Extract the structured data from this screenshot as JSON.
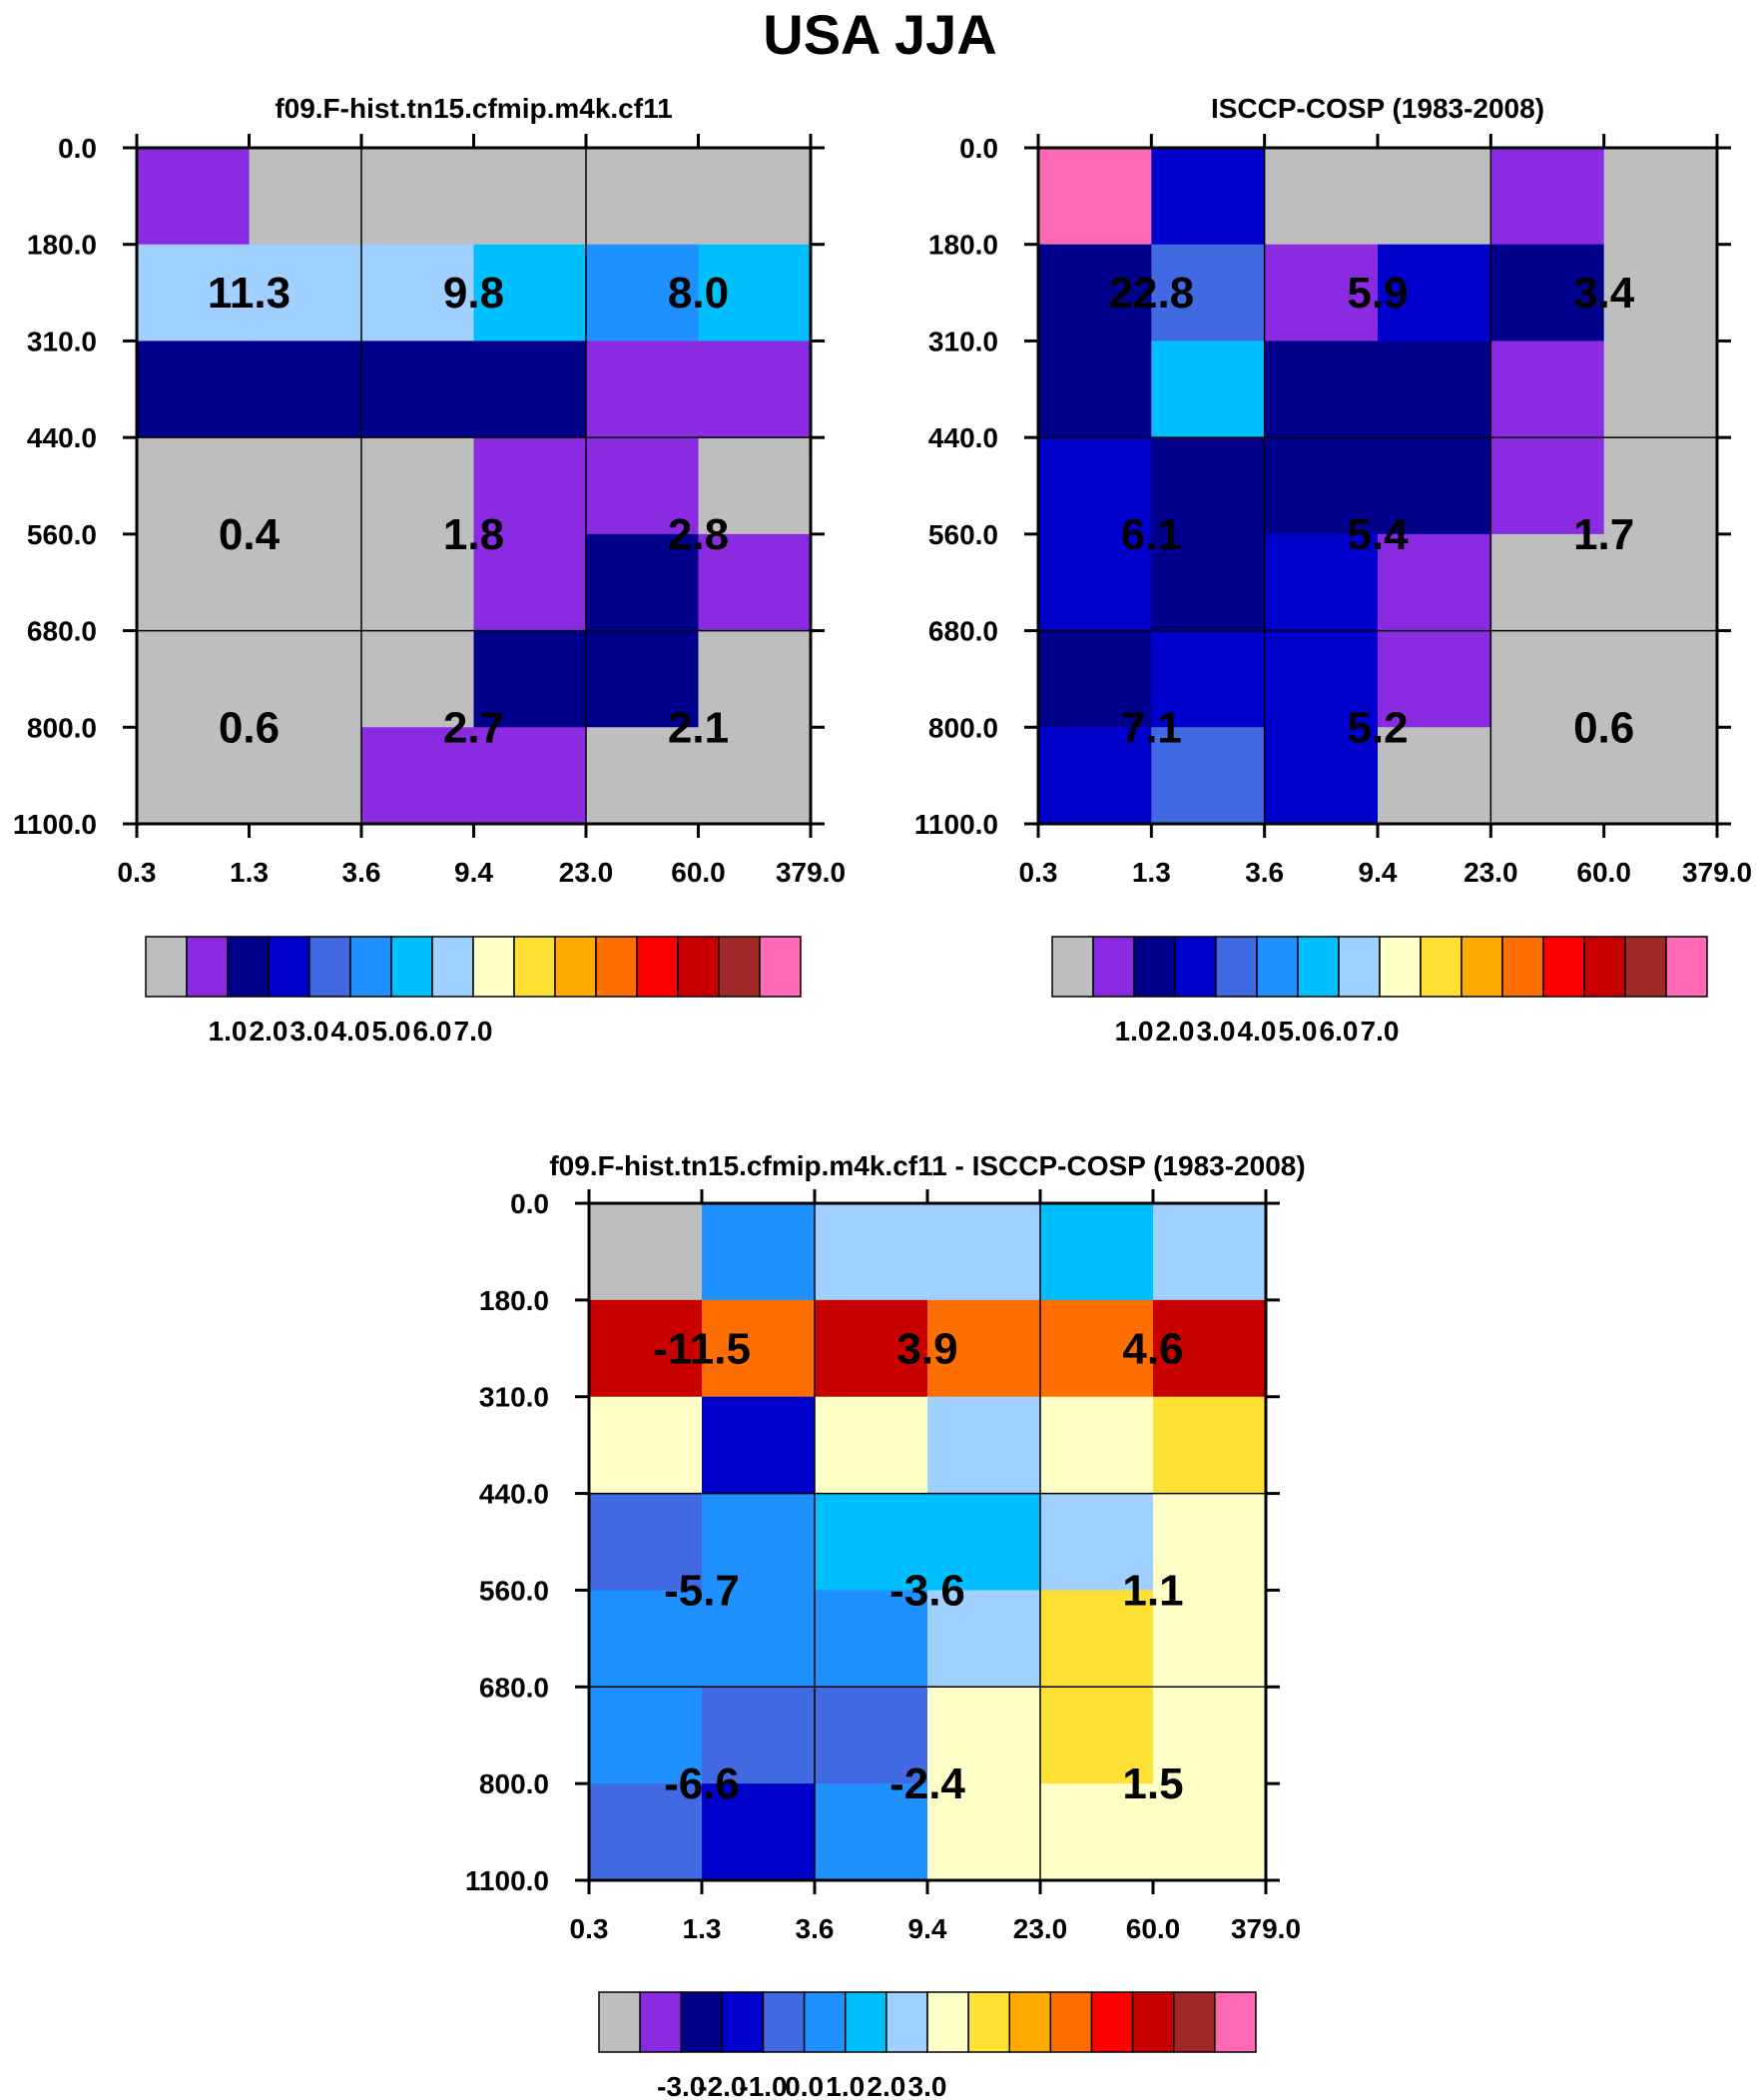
{
  "title": "USA JJA",
  "chart_data": [
    {
      "id": "model",
      "type": "heatmap",
      "title": "f09.F-hist.tn15.cfmip.m4k.cf11",
      "xlabel": "",
      "ylabel": "",
      "x_ticks": [
        "0.3",
        "1.3",
        "3.6",
        "9.4",
        "23.0",
        "60.0",
        "379.0"
      ],
      "y_ticks": [
        "0.0",
        "180.0",
        "310.0",
        "440.0",
        "560.0",
        "680.0",
        "800.0",
        "1100.0"
      ],
      "cell_colors": [
        [
          "#8a2be2",
          "#bebebe",
          "#bebebe",
          "#bebebe",
          "#bebebe",
          "#bebebe"
        ],
        [
          "#a0d0ff",
          "#a0d0ff",
          "#a0d0ff",
          "#00bfff",
          "#1e90ff",
          "#00bfff"
        ],
        [
          "#00008b",
          "#00008b",
          "#00008b",
          "#00008b",
          "#8a2be2",
          "#8a2be2"
        ],
        [
          "#bebebe",
          "#bebebe",
          "#bebebe",
          "#8a2be2",
          "#8a2be2",
          "#bebebe"
        ],
        [
          "#bebebe",
          "#bebebe",
          "#bebebe",
          "#8a2be2",
          "#00008b",
          "#8a2be2"
        ],
        [
          "#bebebe",
          "#bebebe",
          "#bebebe",
          "#00008b",
          "#00008b",
          "#bebebe"
        ],
        [
          "#bebebe",
          "#bebebe",
          "#8a2be2",
          "#8a2be2",
          "#bebebe",
          "#bebebe"
        ]
      ],
      "block_labels": [
        [
          "11.3",
          "9.8",
          "8.0"
        ],
        [
          "0.4",
          "1.8",
          "2.8"
        ],
        [
          "0.6",
          "2.7",
          "2.1"
        ]
      ],
      "legend_colors": [
        "#bebebe",
        "#8a2be2",
        "#00008b",
        "#0000cd",
        "#4169e1",
        "#1e90ff",
        "#00bfff",
        "#a0d0ff",
        "#ffffc8",
        "#ffe135",
        "#ffaa00",
        "#ff6e00",
        "#ff0000",
        "#c80000",
        "#a02828",
        "#ff69b4"
      ],
      "legend_labels": [
        "1.0",
        "2.0",
        "3.0",
        "4.0",
        "5.0",
        "6.0",
        "7.0"
      ],
      "legend_label_start": 2
    },
    {
      "id": "obs",
      "type": "heatmap",
      "title": "ISCCP-COSP (1983-2008)",
      "xlabel": "",
      "ylabel": "",
      "x_ticks": [
        "0.3",
        "1.3",
        "3.6",
        "9.4",
        "23.0",
        "60.0",
        "379.0"
      ],
      "y_ticks": [
        "0.0",
        "180.0",
        "310.0",
        "440.0",
        "560.0",
        "680.0",
        "800.0",
        "1100.0"
      ],
      "cell_colors": [
        [
          "#ff69b4",
          "#0000cd",
          "#bebebe",
          "#bebebe",
          "#8a2be2",
          "#bebebe"
        ],
        [
          "#00008b",
          "#4169e1",
          "#8a2be2",
          "#0000cd",
          "#00008b",
          "#bebebe"
        ],
        [
          "#00008b",
          "#00bfff",
          "#00008b",
          "#00008b",
          "#8a2be2",
          "#bebebe"
        ],
        [
          "#0000cd",
          "#00008b",
          "#00008b",
          "#00008b",
          "#8a2be2",
          "#bebebe"
        ],
        [
          "#0000cd",
          "#00008b",
          "#0000cd",
          "#8a2be2",
          "#bebebe",
          "#bebebe"
        ],
        [
          "#00008b",
          "#0000cd",
          "#0000cd",
          "#8a2be2",
          "#bebebe",
          "#bebebe"
        ],
        [
          "#0000cd",
          "#4169e1",
          "#0000cd",
          "#bebebe",
          "#bebebe",
          "#bebebe"
        ]
      ],
      "block_labels": [
        [
          "22.8",
          "5.9",
          "3.4"
        ],
        [
          "6.1",
          "5.4",
          "1.7"
        ],
        [
          "7.1",
          "5.2",
          "0.6"
        ]
      ],
      "legend_colors": [
        "#bebebe",
        "#8a2be2",
        "#00008b",
        "#0000cd",
        "#4169e1",
        "#1e90ff",
        "#00bfff",
        "#a0d0ff",
        "#ffffc8",
        "#ffe135",
        "#ffaa00",
        "#ff6e00",
        "#ff0000",
        "#c80000",
        "#a02828",
        "#ff69b4"
      ],
      "legend_labels": [
        "1.0",
        "2.0",
        "3.0",
        "4.0",
        "5.0",
        "6.0",
        "7.0"
      ],
      "legend_label_start": 2
    },
    {
      "id": "diff",
      "type": "heatmap",
      "title": "f09.F-hist.tn15.cfmip.m4k.cf11 - ISCCP-COSP (1983-2008)",
      "xlabel": "",
      "ylabel": "",
      "x_ticks": [
        "0.3",
        "1.3",
        "3.6",
        "9.4",
        "23.0",
        "60.0",
        "379.0"
      ],
      "y_ticks": [
        "0.0",
        "180.0",
        "310.0",
        "440.0",
        "560.0",
        "680.0",
        "800.0",
        "1100.0"
      ],
      "cell_colors": [
        [
          "#bebebe",
          "#1e90ff",
          "#a0d0ff",
          "#a0d0ff",
          "#00bfff",
          "#a0d0ff"
        ],
        [
          "#c80000",
          "#ff6e00",
          "#c80000",
          "#ff6e00",
          "#ff6e00",
          "#c80000"
        ],
        [
          "#ffffc8",
          "#0000cd",
          "#ffffc8",
          "#a0d0ff",
          "#ffffc8",
          "#ffe135"
        ],
        [
          "#4169e1",
          "#1e90ff",
          "#00bfff",
          "#00bfff",
          "#a0d0ff",
          "#ffffc8"
        ],
        [
          "#1e90ff",
          "#1e90ff",
          "#1e90ff",
          "#a0d0ff",
          "#ffe135",
          "#ffffc8"
        ],
        [
          "#1e90ff",
          "#4169e1",
          "#4169e1",
          "#ffffc8",
          "#ffe135",
          "#ffffc8"
        ],
        [
          "#4169e1",
          "#0000cd",
          "#1e90ff",
          "#ffffc8",
          "#ffffc8",
          "#ffffc8"
        ]
      ],
      "block_labels": [
        [
          "-11.5",
          "3.9",
          "4.6"
        ],
        [
          "-5.7",
          "-3.6",
          "1.1"
        ],
        [
          "-6.6",
          "-2.4",
          "1.5"
        ]
      ],
      "legend_colors": [
        "#bebebe",
        "#8a2be2",
        "#00008b",
        "#0000cd",
        "#4169e1",
        "#1e90ff",
        "#00bfff",
        "#a0d0ff",
        "#ffffc8",
        "#ffe135",
        "#ffaa00",
        "#ff6e00",
        "#ff0000",
        "#c80000",
        "#a02828",
        "#ff69b4"
      ],
      "legend_labels": [
        "-3.0",
        "-2.0",
        "-1.0",
        "0.0",
        "1.0",
        "2.0",
        "3.0"
      ],
      "legend_label_start": 2
    }
  ]
}
